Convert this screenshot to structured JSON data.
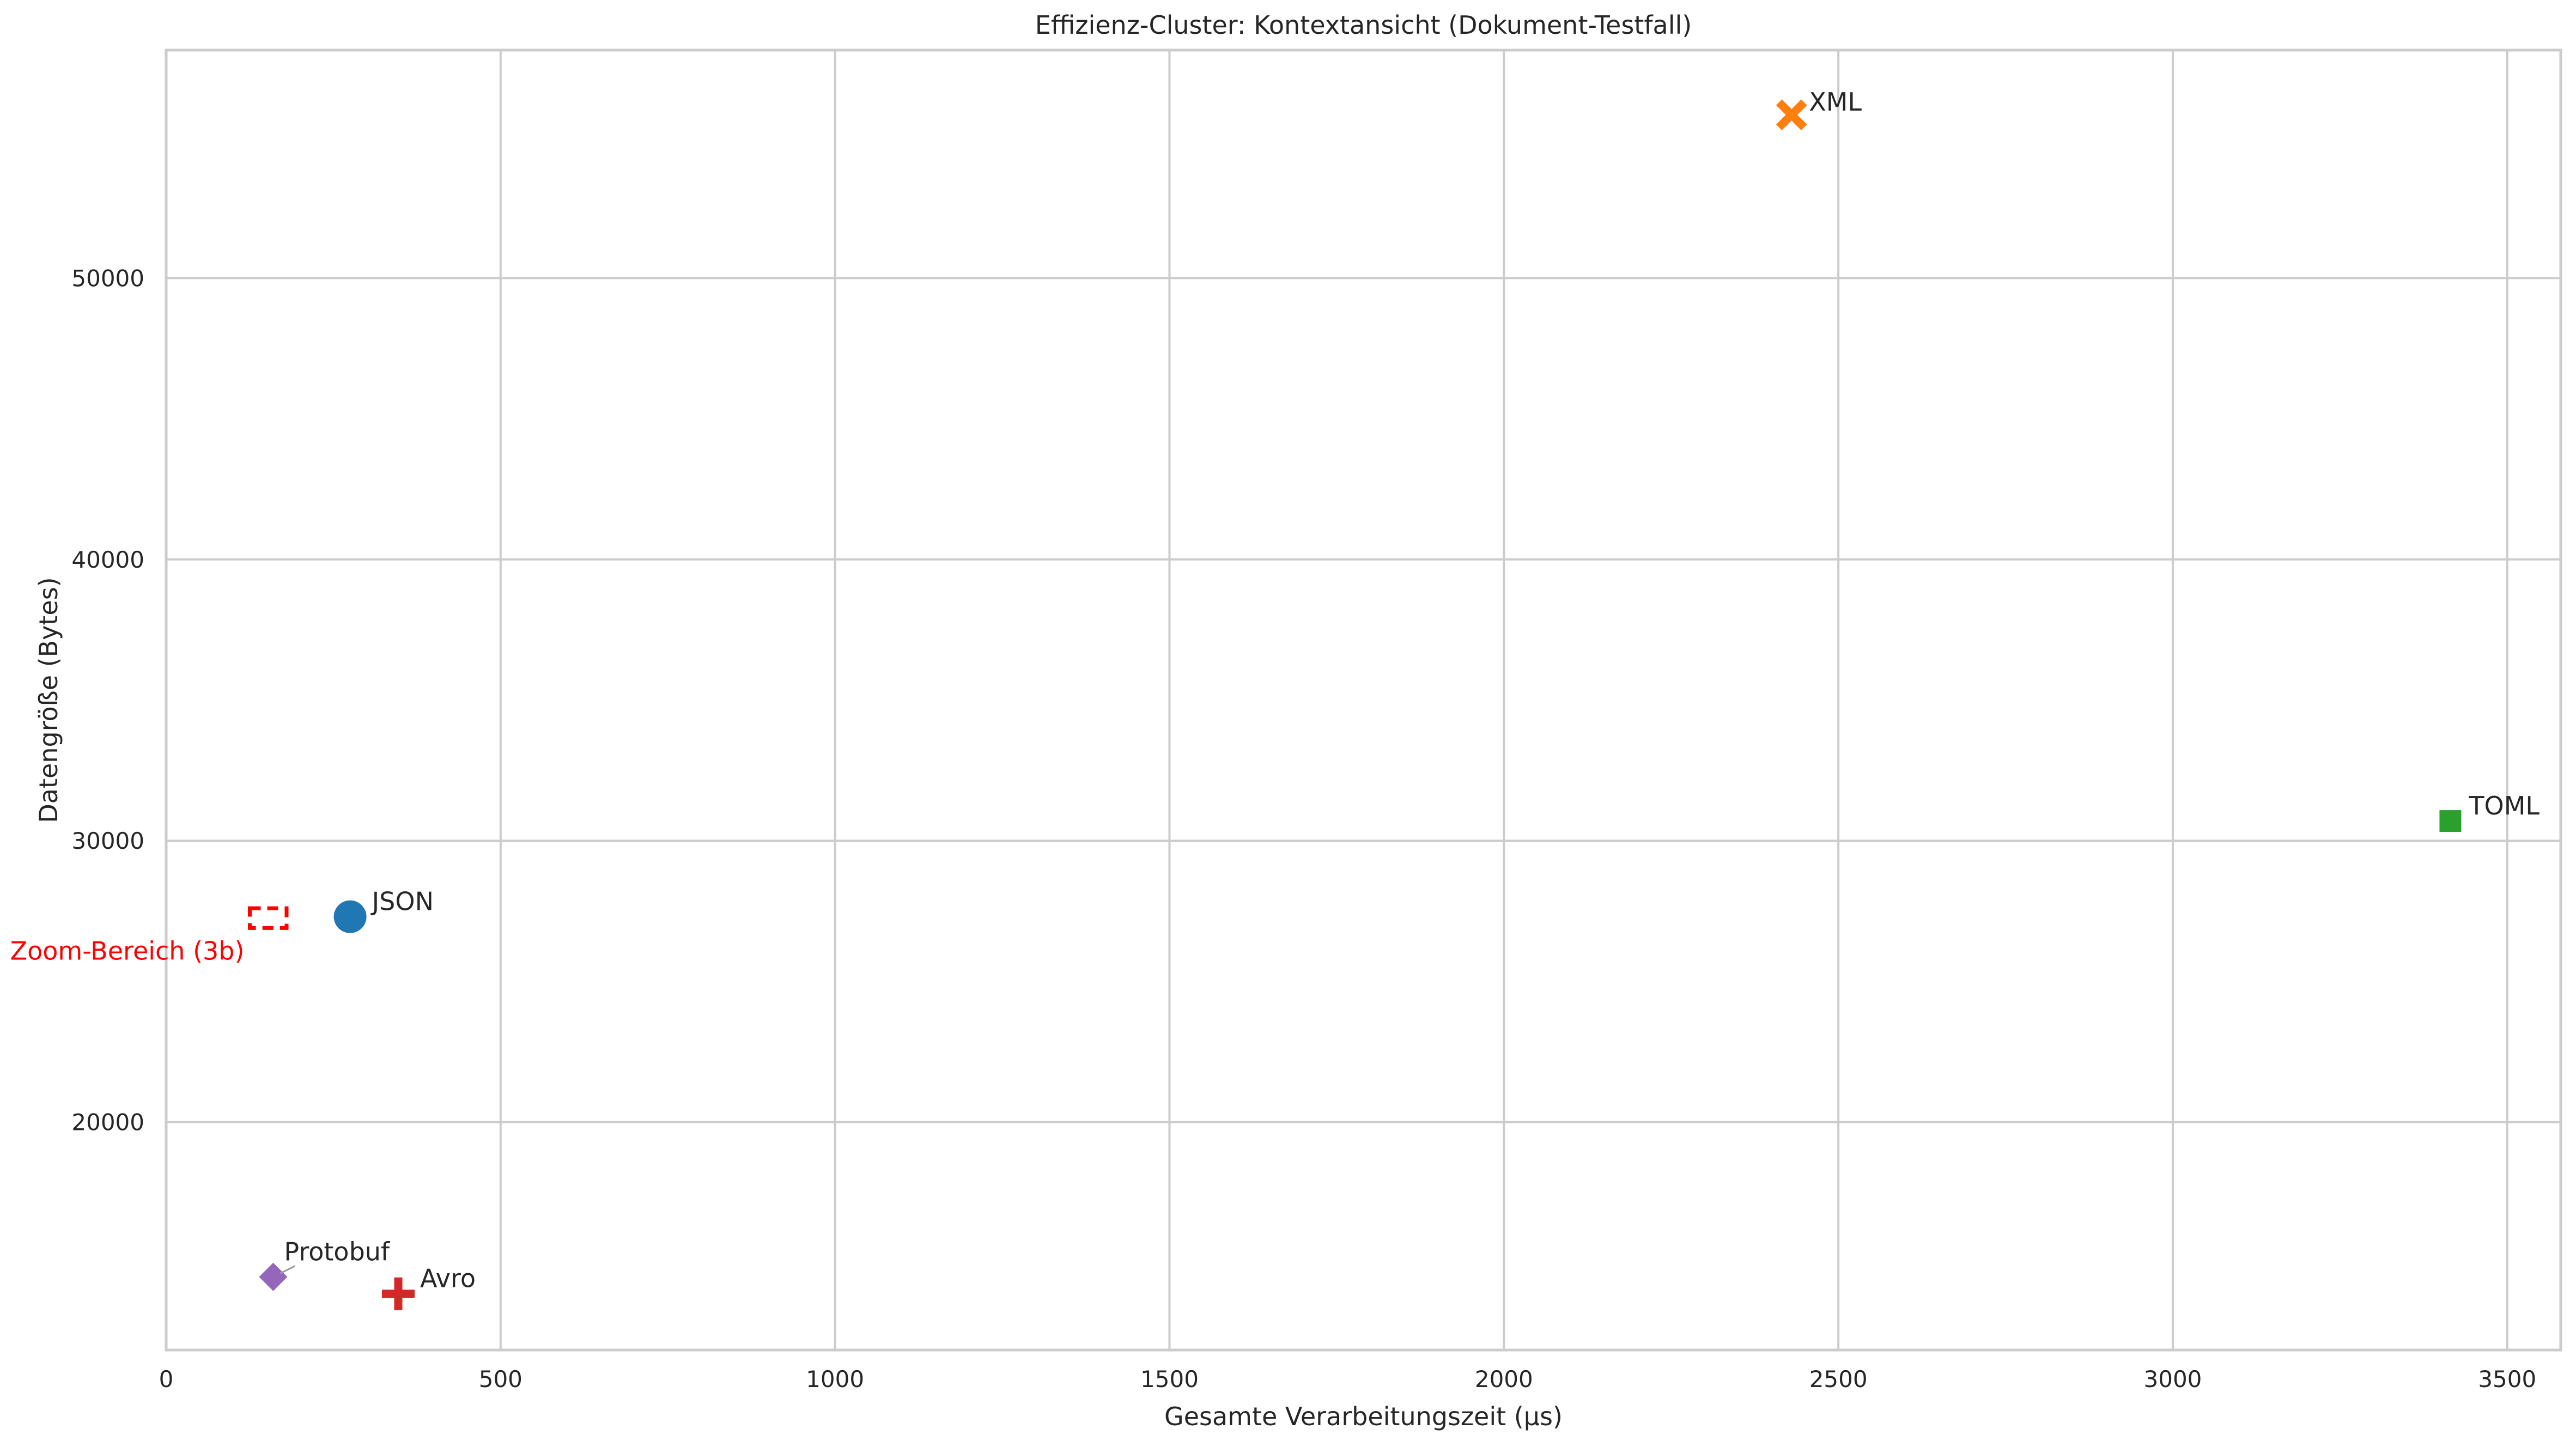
{
  "chart_data": {
    "type": "scatter",
    "title": "Effizienz-Cluster: Kontextansicht (Dokument-Testfall)",
    "xlabel": "Gesamte Verarbeitungszeit (µs)",
    "ylabel": "Datengröße (Bytes)",
    "xlim": [
      0,
      3580
    ],
    "ylim": [
      11900,
      58100
    ],
    "xticks": [
      0,
      500,
      1000,
      1500,
      2000,
      2500,
      3000,
      3500
    ],
    "yticks": [
      20000,
      30000,
      40000,
      50000
    ],
    "grid": true,
    "points": [
      {
        "label": "JSON",
        "x": 275,
        "y": 27300,
        "marker": "circle",
        "color": "#1f77b4"
      },
      {
        "label": "XML",
        "x": 2430,
        "y": 55800,
        "marker": "x",
        "color": "#ff7f0e"
      },
      {
        "label": "TOML",
        "x": 3415,
        "y": 30700,
        "marker": "square",
        "color": "#2ca02c"
      },
      {
        "label": "Avro",
        "x": 347,
        "y": 13900,
        "marker": "plus",
        "color": "#d62728"
      },
      {
        "label": "Protobuf",
        "x": 160,
        "y": 14500,
        "marker": "diamond",
        "color": "#9467bd"
      }
    ],
    "zoom_region": {
      "label": "Zoom-Bereich (3b)",
      "x": [
        125,
        180
      ],
      "y": [
        26900,
        27600
      ],
      "color": "#ff0000"
    }
  }
}
